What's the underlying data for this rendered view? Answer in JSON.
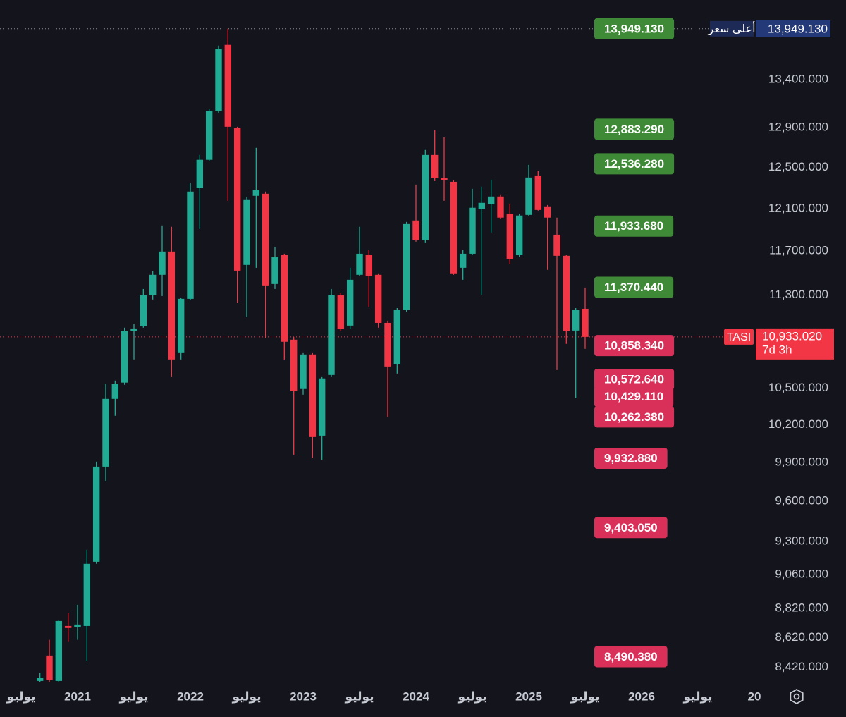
{
  "chart_data": {
    "type": "candlestick",
    "log_scale": true,
    "up_color": "#22ab94",
    "down_color": "#f23645",
    "x": [
      "2020-09",
      "2020-10",
      "2020-11",
      "2020-12",
      "2021-01",
      "2021-02",
      "2021-03",
      "2021-04",
      "2021-05",
      "2021-06",
      "2021-07",
      "2021-08",
      "2021-09",
      "2021-10",
      "2021-11",
      "2021-12",
      "2022-01",
      "2022-02",
      "2022-03",
      "2022-04",
      "2022-05",
      "2022-06",
      "2022-07",
      "2022-08",
      "2022-09",
      "2022-10",
      "2022-11",
      "2022-12",
      "2023-01",
      "2023-02",
      "2023-03",
      "2023-04",
      "2023-05",
      "2023-06",
      "2023-07",
      "2023-08",
      "2023-09",
      "2023-10",
      "2023-11",
      "2023-12",
      "2024-01",
      "2024-02",
      "2024-03",
      "2024-04",
      "2024-05",
      "2024-06",
      "2024-07",
      "2024-08",
      "2024-09",
      "2024-10",
      "2024-11",
      "2024-12",
      "2025-01",
      "2025-02",
      "2025-03",
      "2025-04",
      "2025-05",
      "2025-06",
      "2025-07"
    ],
    "open": [
      8329,
      8498,
      8329,
      8699,
      8690,
      8699,
      9152,
      9867,
      10410,
      10545,
      10982,
      11025,
      11304,
      11483,
      11696,
      10800,
      11267,
      12298,
      12576,
      13074,
      13772,
      12895,
      11573,
      12223,
      12243,
      11400,
      11663,
      10909,
      10492,
      10782,
      10112,
      10609,
      11304,
      11031,
      11483,
      11663,
      11483,
      11055,
      10698,
      11167,
      11987,
      11800,
      12624,
      12394,
      12359,
      11547,
      11676,
      12094,
      12141,
      12216,
      12047,
      11663,
      12040,
      12421,
      12121,
      11853,
      11657,
      10988,
      11179
    ],
    "high": [
      8381,
      8604,
      8738,
      8787,
      8846,
      9239,
      9906,
      10533,
      10562,
      11013,
      11043,
      11355,
      11515,
      11940,
      11927,
      11279,
      12346,
      12624,
      13089,
      13764,
      13949.13,
      12909,
      12209,
      12695,
      12264,
      11741,
      11676,
      10933,
      10800,
      10800,
      10591,
      11355,
      11323,
      11547,
      11927,
      11709,
      11496,
      11074,
      11185,
      11973,
      12332,
      12674,
      12873,
      12802,
      12373,
      11709,
      12291,
      12312,
      12380,
      12237,
      12148,
      12047,
      12526,
      12463,
      12134,
      12014,
      11663,
      11185,
      11368
    ],
    "low": [
      8320,
      8320,
      8320,
      8594,
      8604,
      8461,
      9137,
      9758,
      10272,
      10527,
      10740,
      11013,
      11261,
      11292,
      10591,
      10740,
      11254,
      11907,
      12562,
      13053,
      12175,
      11229,
      11105,
      11547,
      10921,
      11355,
      10740,
      9961,
      10445,
      9933,
      9922,
      10591,
      10982,
      11000,
      11470,
      11198,
      11013,
      10260,
      10621,
      11154,
      11788,
      11781,
      12366,
      12175,
      11483,
      11438,
      11663,
      11304,
      11874,
      12000,
      11579,
      11644,
      12027,
      12081,
      11528,
      10650,
      10873,
      10416,
      10830
    ],
    "close": [
      8348,
      8334,
      8733,
      8685,
      8709,
      9137,
      9867,
      10410,
      10533,
      10982,
      11006,
      11304,
      11483,
      11696,
      10740,
      11267,
      12264,
      12576,
      13074,
      13726,
      12909,
      11521,
      12189,
      12278,
      11387,
      11644,
      10891,
      10474,
      10782,
      10101,
      10580,
      11304,
      11000,
      11438,
      11676,
      11470,
      11055,
      10680,
      11167,
      11953,
      11800,
      12624,
      12394,
      12373,
      11496,
      11676,
      12108,
      12155,
      12216,
      12014,
      11630,
      12034,
      12401,
      12087,
      12014,
      11657,
      10982,
      11167,
      10933.02
    ],
    "ylim": [
      8310,
      14270
    ],
    "yticks": [
      {
        "value": 13400,
        "label": "13,400.000"
      },
      {
        "value": 12900,
        "label": "12,900.000"
      },
      {
        "value": 12500,
        "label": "12,500.000"
      },
      {
        "value": 12100,
        "label": "12,100.000"
      },
      {
        "value": 11700,
        "label": "11,700.000"
      },
      {
        "value": 11300,
        "label": "11,300.000"
      },
      {
        "value": 10500,
        "label": "10,500.000"
      },
      {
        "value": 10200,
        "label": "10,200.000"
      },
      {
        "value": 9900,
        "label": "9,900.000"
      },
      {
        "value": 9600,
        "label": "9,600.000"
      },
      {
        "value": 9300,
        "label": "9,300.000"
      },
      {
        "value": 9060,
        "label": "9,060.000"
      },
      {
        "value": 8820,
        "label": "8,820.000"
      },
      {
        "value": 8620,
        "label": "8,620.000"
      },
      {
        "value": 8420,
        "label": "8,420.000"
      }
    ],
    "xticks": [
      {
        "value": "2020-07",
        "label": "يوليو"
      },
      {
        "value": "2021-01",
        "label": "2021"
      },
      {
        "value": "2021-07",
        "label": "يوليو"
      },
      {
        "value": "2022-01",
        "label": "2022"
      },
      {
        "value": "2022-07",
        "label": "يوليو"
      },
      {
        "value": "2023-01",
        "label": "2023"
      },
      {
        "value": "2023-07",
        "label": "يوليو"
      },
      {
        "value": "2024-01",
        "label": "2024"
      },
      {
        "value": "2024-07",
        "label": "يوليو"
      },
      {
        "value": "2025-01",
        "label": "2025"
      },
      {
        "value": "2025-07",
        "label": "يوليو"
      },
      {
        "value": "2026-01",
        "label": "2026"
      },
      {
        "value": "2026-07",
        "label": "يوليو"
      },
      {
        "value": "2027-01",
        "label": "20"
      }
    ],
    "levels": [
      {
        "value": 13949.13,
        "label": "13,949.130",
        "color": "#3f8a37"
      },
      {
        "value": 12883.29,
        "label": "12,883.290",
        "color": "#3f8a37"
      },
      {
        "value": 12536.28,
        "label": "12,536.280",
        "color": "#3f8a37"
      },
      {
        "value": 11933.68,
        "label": "11,933.680",
        "color": "#3f8a37"
      },
      {
        "value": 11370.44,
        "label": "11,370.440",
        "color": "#3f8a37"
      },
      {
        "value": 10858.34,
        "label": "10,858.340",
        "color": "#d9305a"
      },
      {
        "value": 10572.64,
        "label": "10,572.640",
        "color": "#d9305a"
      },
      {
        "value": 10429.11,
        "label": "10,429.110",
        "color": "#d9305a"
      },
      {
        "value": 10262.38,
        "label": "10,262.380",
        "color": "#d9305a"
      },
      {
        "value": 9932.88,
        "label": "9,932.880",
        "color": "#d9305a"
      },
      {
        "value": 9403.05,
        "label": "9,403.050",
        "color": "#d9305a"
      },
      {
        "value": 8490.38,
        "label": "8,490.380",
        "color": "#d9305a"
      }
    ],
    "high_marker": {
      "text": "أعلى سعر",
      "value": 13949.13,
      "label": "13,949.130"
    },
    "last_price": {
      "symbol": "TASI",
      "value": 10933.02,
      "label": "10,933.020",
      "countdown": "7d 3h"
    }
  }
}
